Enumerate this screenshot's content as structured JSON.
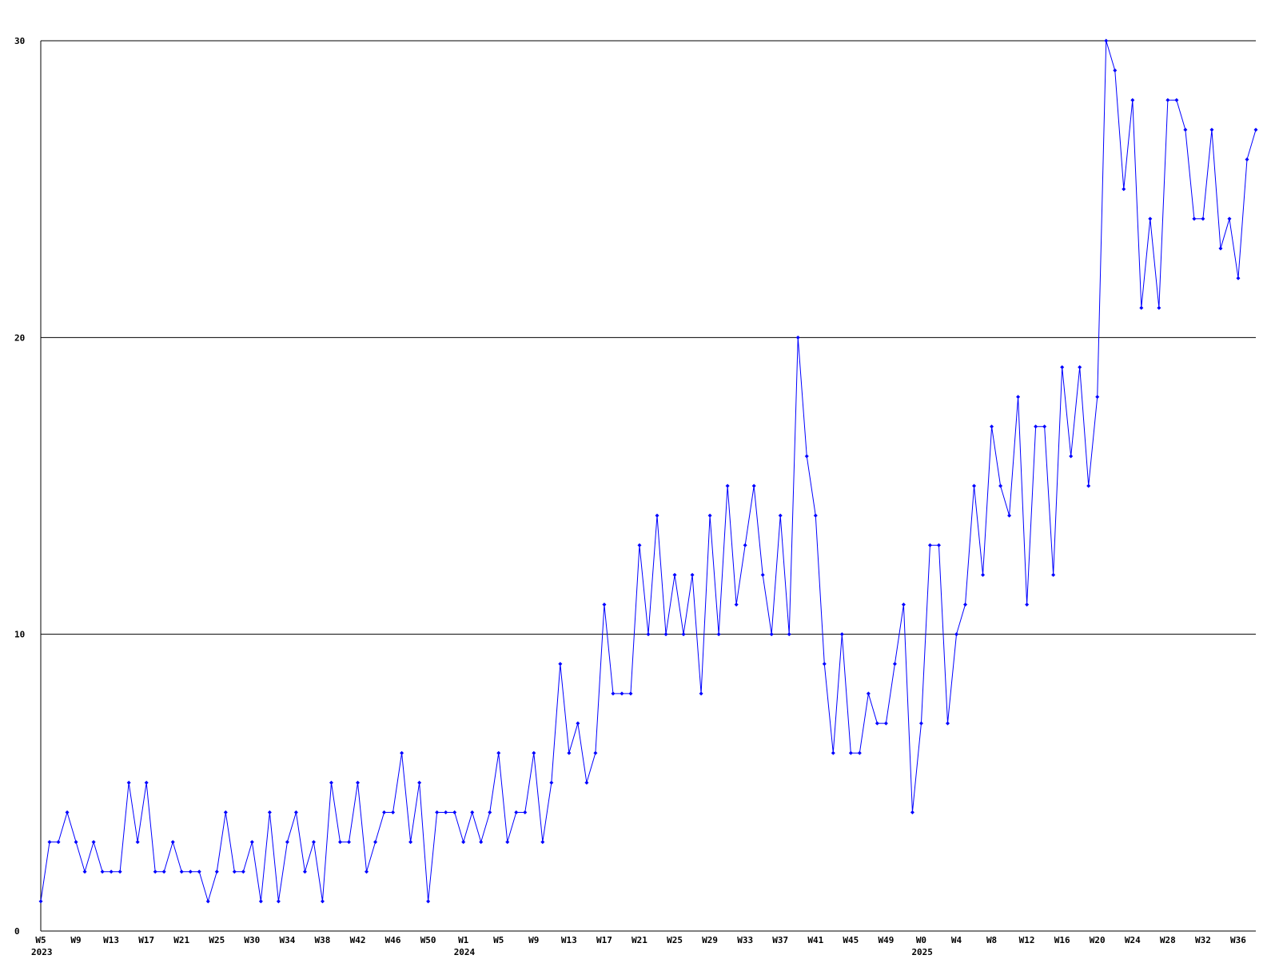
{
  "chart_data": {
    "type": "line",
    "categories": [
      "W5",
      null,
      null,
      null,
      "W9",
      null,
      null,
      null,
      "W13",
      null,
      null,
      null,
      "W17",
      null,
      null,
      null,
      "W21",
      null,
      null,
      null,
      "W25",
      null,
      null,
      null,
      "W30",
      null,
      null,
      null,
      "W34",
      null,
      null,
      null,
      "W38",
      null,
      null,
      null,
      "W42",
      null,
      null,
      null,
      "W46",
      null,
      null,
      null,
      "W50",
      null,
      null,
      null,
      "W1",
      null,
      null,
      null,
      "W5",
      null,
      null,
      null,
      "W9",
      null,
      null,
      null,
      "W13",
      null,
      null,
      null,
      "W17",
      null,
      null,
      null,
      "W21",
      null,
      null,
      null,
      "W25",
      null,
      null,
      null,
      "W29",
      null,
      null,
      null,
      "W33",
      null,
      null,
      null,
      "W37",
      null,
      null,
      null,
      "W41",
      null,
      null,
      null,
      "W45",
      null,
      null,
      null,
      "W49",
      null,
      null,
      null,
      "W0",
      null,
      null,
      null,
      "W4",
      null,
      null,
      null,
      "W8",
      null,
      null,
      null,
      "W12",
      null,
      null,
      null,
      "W16",
      null,
      null,
      null,
      "W20",
      null,
      null,
      null,
      "W24",
      null,
      null,
      null,
      "W28",
      null,
      null,
      null,
      "W32",
      null,
      null,
      null,
      "W36",
      null,
      null
    ],
    "category_groups": [
      "2023",
      null,
      null,
      null,
      null,
      null,
      null,
      null,
      null,
      null,
      null,
      null,
      null,
      null,
      null,
      null,
      null,
      null,
      null,
      null,
      null,
      null,
      null,
      null,
      null,
      null,
      null,
      null,
      null,
      null,
      null,
      null,
      null,
      null,
      null,
      null,
      null,
      null,
      null,
      null,
      null,
      null,
      null,
      null,
      null,
      null,
      null,
      null,
      "2024",
      null,
      null,
      null,
      null,
      null,
      null,
      null,
      null,
      null,
      null,
      null,
      null,
      null,
      null,
      null,
      null,
      null,
      null,
      null,
      null,
      null,
      null,
      null,
      null,
      null,
      null,
      null,
      null,
      null,
      null,
      null,
      null,
      null,
      null,
      null,
      null,
      null,
      null,
      null,
      null,
      null,
      null,
      null,
      null,
      null,
      null,
      null,
      null,
      null,
      null,
      null,
      "2025",
      null,
      null,
      null,
      null,
      null,
      null,
      null,
      null,
      null,
      null,
      null,
      null,
      null,
      null,
      null,
      null,
      null,
      null,
      null,
      null,
      null,
      null,
      null,
      null,
      null,
      null,
      null,
      null,
      null,
      null,
      null,
      null,
      null,
      null,
      null,
      null,
      null
    ],
    "values": [
      1,
      3,
      3,
      4,
      3,
      2,
      3,
      2,
      2,
      2,
      5,
      3,
      5,
      2,
      2,
      3,
      2,
      2,
      2,
      1,
      2,
      4,
      2,
      2,
      3,
      1,
      4,
      1,
      3,
      4,
      2,
      3,
      1,
      5,
      3,
      3,
      5,
      2,
      3,
      4,
      4,
      6,
      3,
      5,
      1,
      4,
      4,
      4,
      3,
      4,
      3,
      4,
      6,
      3,
      4,
      4,
      6,
      3,
      5,
      9,
      6,
      7,
      5,
      6,
      11,
      8,
      8,
      8,
      13,
      10,
      14,
      10,
      12,
      10,
      12,
      8,
      14,
      10,
      15,
      11,
      13,
      15,
      12,
      10,
      14,
      10,
      20,
      16,
      14,
      9,
      6,
      10,
      6,
      6,
      8,
      7,
      7,
      9,
      11,
      4,
      7,
      13,
      13,
      7,
      10,
      11,
      15,
      12,
      17,
      15,
      14,
      18,
      11,
      17,
      17,
      12,
      19,
      16,
      19,
      15,
      18,
      30,
      29,
      25,
      28,
      21,
      24,
      21,
      28,
      28,
      27,
      24,
      24,
      27,
      23,
      24,
      22,
      26,
      27
    ],
    "color": "#0000ff",
    "ylim": [
      0,
      30
    ],
    "yticks": [
      0,
      10,
      20,
      30
    ],
    "grid": true
  }
}
